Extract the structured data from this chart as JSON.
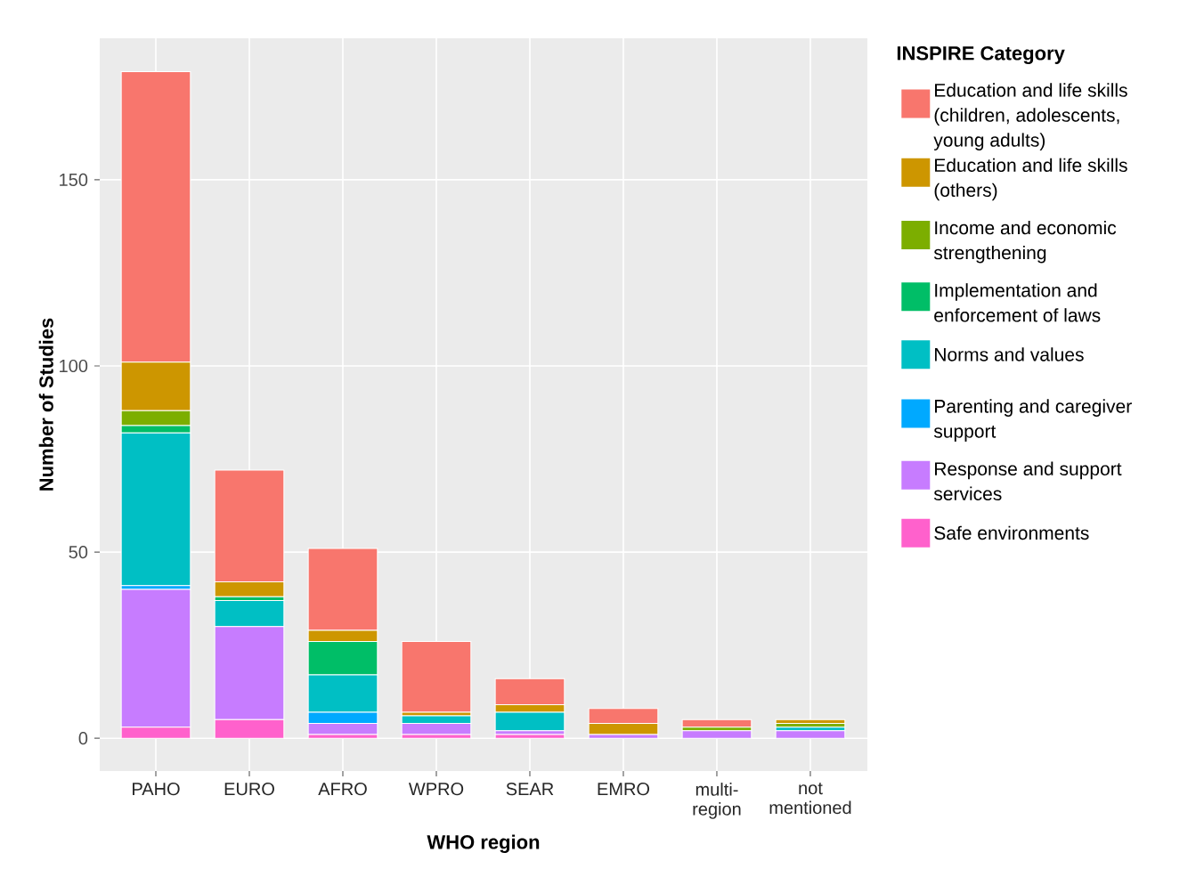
{
  "chart_data": {
    "type": "bar",
    "stacked": true,
    "xlabel": "WHO region",
    "ylabel": "Number of Studies",
    "legend_title": "INSPIRE Category",
    "legend": "right",
    "grid": true,
    "categories": [
      "PAHO",
      "EURO",
      "AFRO",
      "WPRO",
      "SEAR",
      "EMRO",
      "multi-region",
      "not mentioned"
    ],
    "ylim": [
      -8.8,
      188
    ],
    "yticks": [
      0,
      50,
      100,
      150
    ],
    "series": [
      {
        "name": "Safe environments",
        "color": "#ff61cc",
        "values": [
          3,
          5,
          1,
          1,
          1,
          0,
          0,
          0
        ]
      },
      {
        "name": "Response and support services",
        "color": "#c77cff",
        "values": [
          37,
          25,
          3,
          3,
          1,
          1,
          2,
          2
        ]
      },
      {
        "name": "Parenting and caregiver support",
        "color": "#00a9ff",
        "values": [
          1,
          0,
          3,
          0,
          0,
          0,
          0,
          0
        ]
      },
      {
        "name": "Norms and values",
        "color": "#00bfc4",
        "values": [
          41,
          7,
          10,
          2,
          5,
          0,
          0,
          1
        ]
      },
      {
        "name": "Implementation and enforcement of laws",
        "color": "#00be67",
        "values": [
          2,
          1,
          9,
          0,
          0,
          0,
          0,
          0
        ]
      },
      {
        "name": "Income and economic strengthening",
        "color": "#7cae00",
        "values": [
          4,
          0,
          0,
          0,
          0,
          0,
          1,
          1
        ]
      },
      {
        "name": "Education and life skills (others)",
        "color": "#cd9600",
        "values": [
          13,
          4,
          3,
          1,
          2,
          3,
          0,
          1
        ]
      },
      {
        "name": "Education and life skills (children, adolescents, young adults)",
        "color": "#f8766d",
        "values": [
          78,
          30,
          22,
          19,
          7,
          4,
          2,
          0
        ]
      }
    ]
  }
}
